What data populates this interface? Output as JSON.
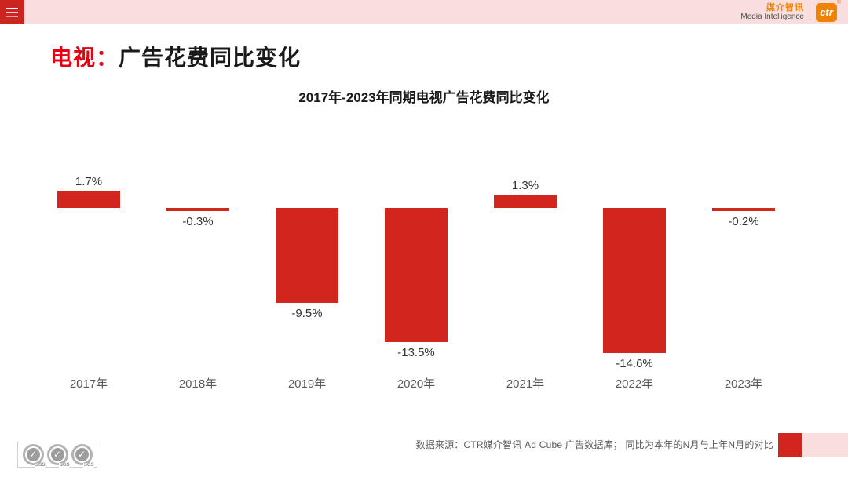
{
  "topbar": {
    "brand_cn": "媒介智讯",
    "brand_en": "Media Intelligence",
    "logo_text": "ctr",
    "registered": "®"
  },
  "page_title": {
    "highlight": "电视：",
    "rest": "广告花费同比变化"
  },
  "chart_data": {
    "type": "bar",
    "title": "2017年-2023年同期电视广告花费同比变化",
    "categories": [
      "2017年",
      "2018年",
      "2019年",
      "2020年",
      "2021年",
      "2022年",
      "2023年"
    ],
    "values": [
      1.7,
      -0.3,
      -9.5,
      -13.5,
      1.3,
      -14.6,
      -0.2
    ],
    "value_labels": [
      "1.7%",
      "-0.3%",
      "-9.5%",
      "-13.5%",
      "1.3%",
      "-14.6%",
      "-0.2%"
    ],
    "xlabel": "",
    "ylabel": "",
    "ylim": [
      -16,
      3
    ],
    "grid": false,
    "legend": false,
    "axes_hidden": true,
    "bar_color": "#d2251e",
    "label_color": "#333333",
    "axis_text_color": "#595959"
  },
  "footer": {
    "source": "数据来源：CTR媒介智讯 Ad Cube 广告数据库；  同比为本年的N月与上年N月的对比",
    "sgs_label": "SGS"
  },
  "colors": {
    "bar_red": "#d2251e",
    "topbar_pink": "#f8dedd",
    "menu_red": "#cc241e",
    "title_red": "#e60012",
    "brand_orange": "#f08300"
  }
}
